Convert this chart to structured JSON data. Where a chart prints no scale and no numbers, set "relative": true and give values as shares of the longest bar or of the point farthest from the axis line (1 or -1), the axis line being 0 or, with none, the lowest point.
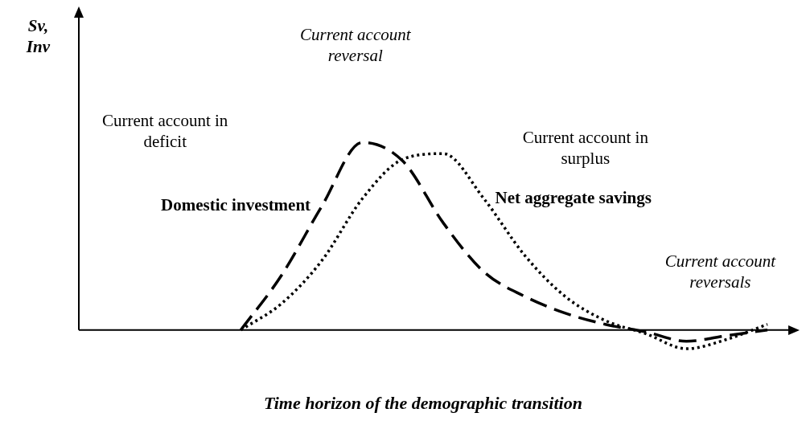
{
  "chart_data": {
    "type": "line",
    "relative": true,
    "xlabel": "Time horizon of the demographic transition",
    "categories": [
      null,
      null,
      null,
      null,
      null,
      null,
      null,
      null,
      null,
      null,
      null,
      null,
      null,
      null,
      null,
      null,
      null,
      null
    ],
    "series": [
      {
        "name": "Domestic investment",
        "color": "#000000",
        "line_style": "dashed",
        "values": [
          null,
          null,
          null,
          null,
          0,
          0.29,
          0.66,
          1,
          0.9,
          0.57,
          0.31,
          0.18,
          0.09,
          0.03,
          -0.01,
          -0.06,
          -0.03,
          0
        ]
      },
      {
        "name": "Net aggregate savings",
        "color": "#000000",
        "line_style": "dotted",
        "values": [
          null,
          null,
          null,
          null,
          0,
          0.14,
          0.37,
          0.7,
          0.91,
          0.94,
          0.7,
          0.4,
          0.18,
          0.05,
          -0.02,
          -0.1,
          -0.05,
          0.03
        ]
      }
    ],
    "annotations": [
      "Sv, Inv",
      "Current account reversal",
      "Current account in deficit",
      "Current account in surplus",
      "Current account reversals"
    ]
  }
}
